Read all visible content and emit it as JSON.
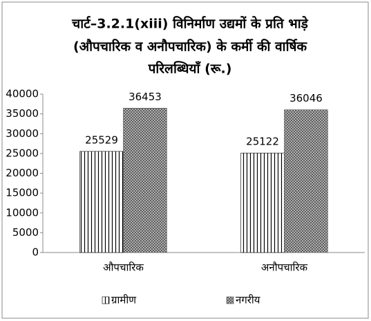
{
  "chart_data": {
    "type": "bar",
    "title": [
      "चार्ट–3.2.1(xiii) विनिर्माण उद्यमों के प्रति भाड़े",
      "(औपचारिक व अनौपचारिक) के कर्मी की वार्षिक",
      "परिलब्धियाँ (रू.)"
    ],
    "categories": [
      "औपचारिक",
      "अनौपचारिक"
    ],
    "series": [
      {
        "name": "ग्रामीण",
        "color": "#000000",
        "pattern": "vertical-lines",
        "values": [
          25529,
          25122
        ]
      },
      {
        "name": "नगरीय",
        "color": "#555555",
        "pattern": "crosshatch",
        "values": [
          36453,
          36046
        ]
      }
    ],
    "ylim": [
      0,
      40000
    ],
    "yticks": [
      0,
      5000,
      10000,
      15000,
      20000,
      25000,
      30000,
      35000,
      40000
    ],
    "grid": false,
    "legend": "bottom"
  }
}
